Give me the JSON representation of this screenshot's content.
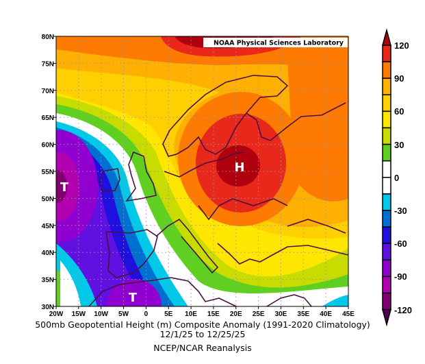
{
  "source_label": "NOAA Physical Sciences Laboratory",
  "title": "500mb Geopotential Height (m) Composite Anomaly (1991-2020 Climatology)",
  "date_range": "12/1/25  to 12/25/25",
  "dataset": "NCEP/NCAR Reanalysis",
  "map": {
    "lon_range": [
      -20,
      45
    ],
    "lat_range": [
      30,
      80
    ],
    "lon_labels": [
      "20W",
      "15W",
      "10W",
      "5W",
      "0",
      "5E",
      "10E",
      "15E",
      "20E",
      "25E",
      "30E",
      "35E",
      "40E",
      "45E"
    ],
    "lat_labels": [
      "30N",
      "35N",
      "40N",
      "45N",
      "50N",
      "55N",
      "60N",
      "65N",
      "70N",
      "75N",
      "80N"
    ],
    "centers": [
      {
        "label": "H",
        "lon": 22,
        "lat": 56
      },
      {
        "label": "T",
        "lon": -19,
        "lat": 52
      },
      {
        "label": "T",
        "lon": -3,
        "lat": 32
      }
    ]
  },
  "colorbar": {
    "labels": [
      "120",
      "90",
      "60",
      "30",
      "0",
      "-30",
      "-60",
      "-90",
      "-120"
    ],
    "colors": [
      "#e8281a",
      "#ff7a00",
      "#ffb000",
      "#ffd000",
      "#ffe600",
      "#c8dc00",
      "#60d020",
      "#ffffff",
      "#ffffff",
      "#00c8e8",
      "#0070d0",
      "#2010e0",
      "#6010e0",
      "#9000d0",
      "#b000b0",
      "#800070"
    ],
    "over_color": "#b00010",
    "under_color": "#500050"
  }
}
